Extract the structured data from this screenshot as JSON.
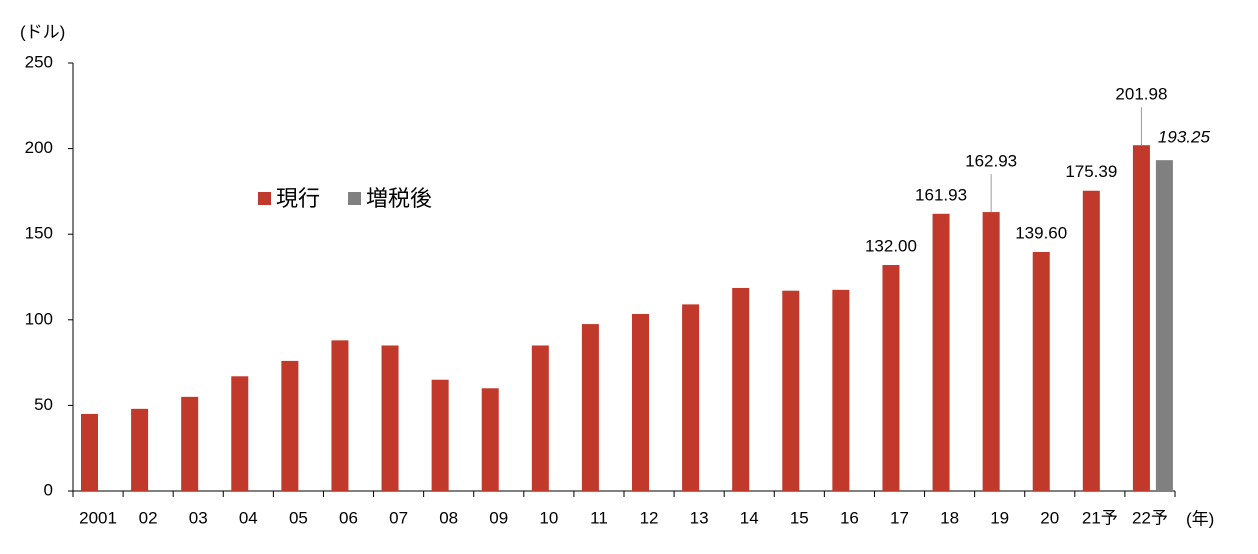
{
  "chart_data": {
    "type": "bar",
    "y_unit": "(ドル)",
    "x_unit": "(年)",
    "categories": [
      "2001",
      "02",
      "03",
      "04",
      "05",
      "06",
      "07",
      "08",
      "09",
      "10",
      "11",
      "12",
      "13",
      "14",
      "15",
      "16",
      "17",
      "18",
      "19",
      "20",
      "21予",
      "22予"
    ],
    "series": [
      {
        "name": "現行",
        "color": "#c0392b",
        "values": [
          45,
          48,
          55,
          67,
          76,
          88,
          85,
          65,
          60,
          85,
          97.5,
          103.4,
          109,
          118.6,
          117,
          117.5,
          132,
          161.93,
          162.93,
          139.6,
          175.39,
          201.98
        ],
        "value_labels": [
          null,
          null,
          null,
          null,
          null,
          null,
          null,
          null,
          null,
          null,
          null,
          null,
          null,
          null,
          null,
          null,
          "132.00",
          "161.93",
          "162.93",
          "139.60",
          "175.39",
          "201.98"
        ]
      },
      {
        "name": "増税後",
        "color": "#808080",
        "values": [
          null,
          null,
          null,
          null,
          null,
          null,
          null,
          null,
          null,
          null,
          null,
          null,
          null,
          null,
          null,
          null,
          null,
          null,
          null,
          null,
          null,
          193.25
        ],
        "value_labels": [
          null,
          null,
          null,
          null,
          null,
          null,
          null,
          null,
          null,
          null,
          null,
          null,
          null,
          null,
          null,
          null,
          null,
          null,
          null,
          null,
          null,
          "193.25"
        ]
      }
    ],
    "ylim": [
      0,
      250
    ],
    "yticks": [
      0,
      50,
      100,
      150,
      200,
      250
    ]
  }
}
